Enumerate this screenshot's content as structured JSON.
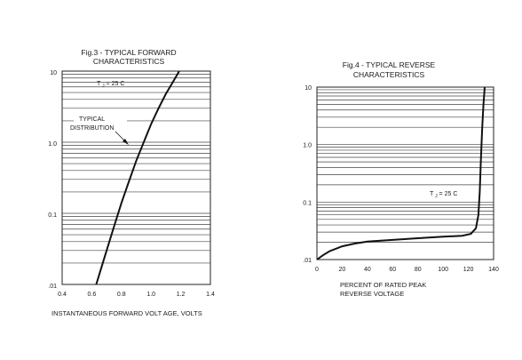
{
  "chart_data": [
    {
      "type": "line",
      "title_line1": "Fig.3 -  TYPICAL FORWARD",
      "title_line2": "CHARACTERISTICS",
      "xlabel": "INSTANTANEOUS FORWARD VOLT AGE, VOLTS",
      "ylabel": "",
      "x_scale": "linear",
      "y_scale": "log",
      "xlim": [
        0.4,
        1.4
      ],
      "ylim": [
        0.01,
        10
      ],
      "x_ticks": [
        "0.4",
        "0.6",
        "0.8",
        "1.0",
        "1.2",
        "1.4"
      ],
      "y_ticks": [
        ".01",
        "0.1",
        "1.0",
        "10"
      ],
      "grid": true,
      "annotation_temp": "TJ = 25 C",
      "annotation_dist_line1": "TYPICAL",
      "annotation_dist_line2": "DISTRIBUTION",
      "series": [
        {
          "x": [
            0.63,
            0.66,
            0.7,
            0.75,
            0.8,
            0.85,
            0.9,
            0.95,
            1.0,
            1.05,
            1.1,
            1.15,
            1.19
          ],
          "y": [
            0.01,
            0.016,
            0.03,
            0.065,
            0.14,
            0.28,
            0.55,
            1.0,
            1.8,
            3.0,
            4.8,
            7.2,
            10
          ]
        }
      ]
    },
    {
      "type": "line",
      "title_line1": "Fig.4  - TYPICAL REVERSE",
      "title_line2": "CHARACTERISTICS",
      "xlabel_line1": "PERCENT OF RATED PEAK",
      "xlabel_line2": "REVERSE VOLTAGE",
      "ylabel": "",
      "x_scale": "linear",
      "y_scale": "log",
      "xlim": [
        0,
        140
      ],
      "ylim": [
        0.01,
        10
      ],
      "x_ticks": [
        "0",
        "20",
        "40",
        "60",
        "80",
        "100",
        "120",
        "140"
      ],
      "y_ticks": [
        ".01",
        "0.1",
        "1.0",
        "10"
      ],
      "grid": true,
      "annotation_temp": "TJ = 25 C",
      "series": [
        {
          "x": [
            0,
            5,
            10,
            20,
            30,
            40,
            60,
            80,
            100,
            115,
            122,
            126,
            128,
            129,
            130,
            131,
            132,
            133
          ],
          "y": [
            0.01,
            0.012,
            0.014,
            0.017,
            0.019,
            0.0205,
            0.022,
            0.0235,
            0.025,
            0.026,
            0.028,
            0.035,
            0.06,
            0.15,
            0.6,
            2.0,
            5.0,
            10
          ]
        }
      ]
    }
  ]
}
